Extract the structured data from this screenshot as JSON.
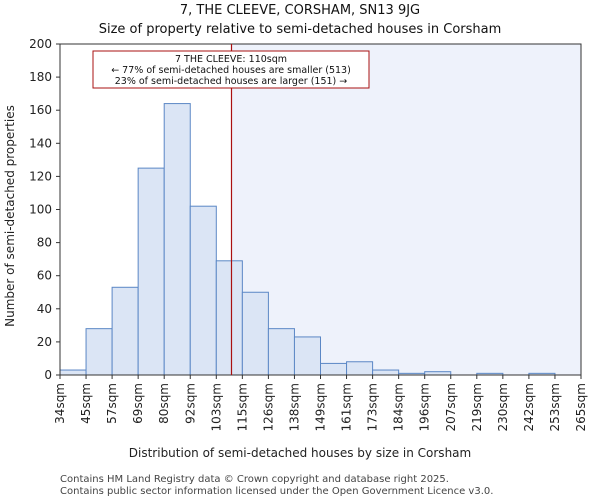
{
  "chart_data": {
    "type": "bar",
    "title": "7, THE CLEEVE, CORSHAM, SN13 9JG",
    "subtitle": "Size of property relative to semi-detached houses in Corsham",
    "xlabel": "Distribution of semi-detached houses by size in Corsham",
    "ylabel": "Number of semi-detached properties",
    "ylim": [
      0,
      200
    ],
    "yticks": [
      0,
      20,
      40,
      60,
      80,
      100,
      120,
      140,
      160,
      180,
      200
    ],
    "bin_edges": [
      "34sqm",
      "45sqm",
      "57sqm",
      "69sqm",
      "80sqm",
      "92sqm",
      "103sqm",
      "115sqm",
      "126sqm",
      "138sqm",
      "149sqm",
      "161sqm",
      "173sqm",
      "184sqm",
      "196sqm",
      "207sqm",
      "219sqm",
      "230sqm",
      "242sqm",
      "253sqm",
      "265sqm"
    ],
    "values": [
      3,
      28,
      53,
      125,
      164,
      102,
      69,
      50,
      28,
      23,
      7,
      8,
      3,
      1,
      2,
      0,
      1,
      0,
      1,
      0
    ],
    "marker_value_sqm": 110,
    "annotation": {
      "line1": "7 THE CLEEVE: 110sqm",
      "line2": "← 77% of semi-detached houses are smaller (513)",
      "line3": "23% of semi-detached houses are larger (151) →"
    },
    "colors": {
      "bar_fill": "#dbe5f5",
      "bar_edge": "#5b87c5",
      "marker": "#aa1111",
      "shade_right": "#eef2fb"
    },
    "grid": false
  },
  "footer": {
    "line1": "Contains HM Land Registry data © Crown copyright and database right 2025.",
    "line2": "Contains public sector information licensed under the Open Government Licence v3.0."
  }
}
